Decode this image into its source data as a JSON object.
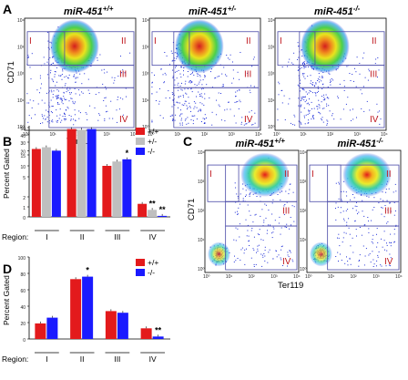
{
  "panels": {
    "A": {
      "label": "A",
      "genotypes": [
        "miR-451",
        "miR-451",
        "miR-451"
      ],
      "genotype_sup": [
        "+/+",
        "+/-",
        "-/-"
      ],
      "y_axis": "CD71",
      "x_axis": "Ter119",
      "regions": [
        "I",
        "II",
        "III",
        "IV"
      ],
      "y_ticks": [
        "10⁴",
        "10³",
        "10²",
        "10¹",
        "10⁰"
      ],
      "x_ticks": [
        "10⁰",
        "10¹",
        "10²",
        "10³",
        "10⁴"
      ]
    },
    "C": {
      "label": "C",
      "genotypes": [
        "miR-451",
        "miR-451"
      ],
      "genotype_sup": [
        "+/+",
        "-/-"
      ],
      "y_axis": "CD71",
      "x_axis": "Ter119",
      "regions": [
        "I",
        "II",
        "III",
        "IV"
      ],
      "y_ticks": [
        "10⁴",
        "10³",
        "10²",
        "10¹",
        "10⁰"
      ],
      "x_ticks": [
        "10⁰",
        "10¹",
        "10²",
        "10³",
        "10⁴"
      ]
    }
  },
  "colors": {
    "wt": "#e31a1c",
    "het": "#bfbfbf",
    "ko": "#1a1aff",
    "region": "#c0181f",
    "gate": "#4a4aa8"
  },
  "chart_data": [
    {
      "panel": "B",
      "type": "bar",
      "ylabel": "Percent Gated",
      "xlabel": "Region:",
      "categories": [
        "I",
        "II",
        "III",
        "IV"
      ],
      "y_ticks": [
        "50",
        "40",
        "30",
        "20",
        "15",
        "10",
        "5",
        "2",
        "1",
        "0"
      ],
      "legend": [
        "+/+",
        "+/-",
        "-/-"
      ],
      "legend_position": "top-right",
      "series": [
        {
          "name": "+/+",
          "values": [
            22,
            48,
            10,
            1.3
          ]
        },
        {
          "name": "+/-",
          "values": [
            24,
            47,
            12,
            0.7
          ]
        },
        {
          "name": "-/-",
          "values": [
            20,
            48,
            13,
            0.1
          ]
        }
      ],
      "annotations": [
        {
          "category": "III",
          "series": "-/-",
          "text": "*"
        },
        {
          "category": "IV",
          "series": "+/-",
          "text": "**"
        },
        {
          "category": "IV",
          "series": "-/-",
          "text": "**"
        }
      ]
    },
    {
      "panel": "D",
      "type": "bar",
      "ylabel": "Percent Gated",
      "xlabel": "Region:",
      "categories": [
        "I",
        "II",
        "III",
        "IV"
      ],
      "y_ticks": [
        "100",
        "80",
        "60",
        "40",
        "20",
        "0"
      ],
      "ylim": [
        0,
        100
      ],
      "legend": [
        "+/+",
        "-/-"
      ],
      "legend_position": "top-right",
      "series": [
        {
          "name": "+/+",
          "values": [
            19,
            73,
            34,
            13
          ]
        },
        {
          "name": "-/-",
          "values": [
            26,
            76,
            32,
            3
          ]
        }
      ],
      "annotations": [
        {
          "category": "II",
          "series": "-/-",
          "text": "*"
        },
        {
          "category": "IV",
          "series": "-/-",
          "text": "**"
        }
      ]
    }
  ]
}
